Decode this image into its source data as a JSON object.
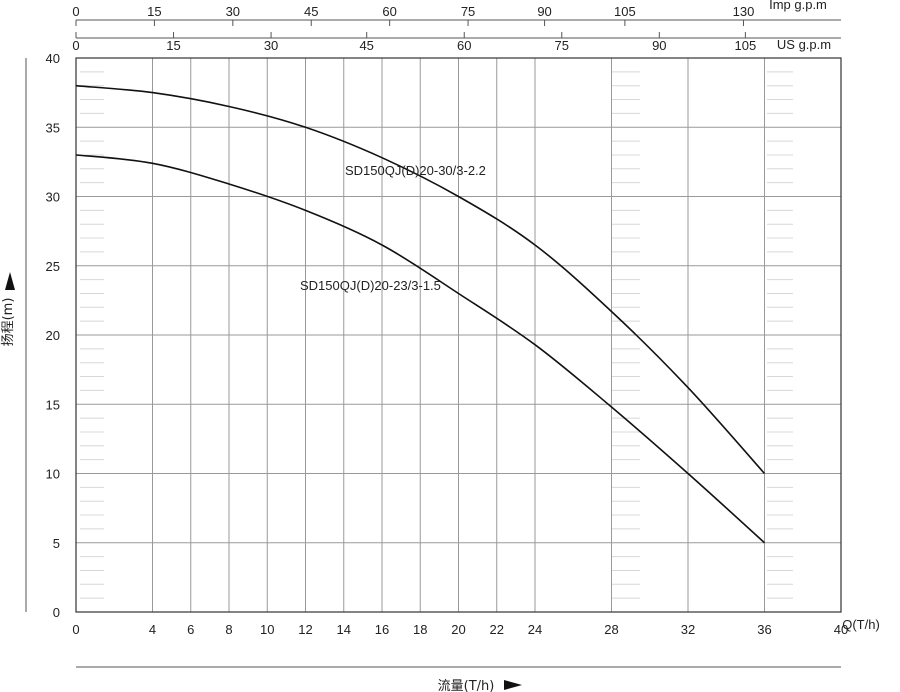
{
  "chart_data": {
    "type": "line",
    "title": "",
    "xlabel": "流量(T/h)",
    "ylabel": "扬程(m)",
    "x_unit": "Q(T/h)",
    "xlim": [
      0,
      40
    ],
    "ylim": [
      0,
      40
    ],
    "x_ticks": [
      "0",
      "4",
      "6",
      "8",
      "10",
      "12",
      "14",
      "16",
      "18",
      "20",
      "22",
      "24",
      "28",
      "32",
      "36",
      "40"
    ],
    "y_ticks": [
      "0",
      "5",
      "10",
      "15",
      "20",
      "25",
      "30",
      "35",
      "40"
    ],
    "top_axis_imp": {
      "unit": "Imp g.p.m",
      "ticks": [
        {
          "label": "0",
          "q": 0
        },
        {
          "label": "15",
          "q": 4.1
        },
        {
          "label": "30",
          "q": 8.2
        },
        {
          "label": "45",
          "q": 12.3
        },
        {
          "label": "60",
          "q": 16.4
        },
        {
          "label": "75",
          "q": 20.5
        },
        {
          "label": "90",
          "q": 24.5
        },
        {
          "label": "105",
          "q": 28.7
        },
        {
          "label": "130",
          "q": 34.9
        }
      ]
    },
    "top_axis_us": {
      "unit": "US g.p.m",
      "ticks": [
        {
          "label": "0",
          "q": 0
        },
        {
          "label": "15",
          "q": 5.1
        },
        {
          "label": "30",
          "q": 10.2
        },
        {
          "label": "45",
          "q": 15.2
        },
        {
          "label": "60",
          "q": 20.3
        },
        {
          "label": "75",
          "q": 25.4
        },
        {
          "label": "90",
          "q": 30.5
        },
        {
          "label": "105",
          "q": 35.0
        }
      ]
    },
    "grid": true,
    "series": [
      {
        "name": "SD150QJ(D)20-30/3-2.2",
        "x": [
          0,
          4,
          8,
          12,
          16,
          20,
          24,
          28,
          32,
          36
        ],
        "y": [
          38.0,
          37.5,
          36.5,
          35.0,
          32.8,
          30.0,
          26.5,
          21.7,
          16.2,
          10.0
        ]
      },
      {
        "name": "SD150QJ(D)20-23/3-1.5",
        "x": [
          0,
          4,
          8,
          12,
          16,
          20,
          24,
          28,
          32,
          36
        ],
        "y": [
          33.0,
          32.4,
          30.9,
          29.0,
          26.5,
          23.0,
          19.3,
          14.8,
          10.0,
          5.0
        ]
      }
    ]
  }
}
